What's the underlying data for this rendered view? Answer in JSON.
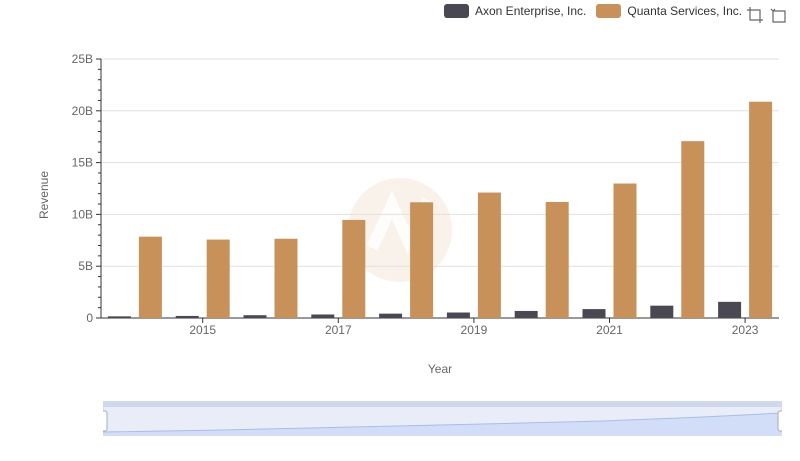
{
  "legend": {
    "items": [
      {
        "label": "Axon Enterprise, Inc.",
        "color": "#4a4953"
      },
      {
        "label": "Quanta Services, Inc.",
        "color": "#c8915a"
      }
    ]
  },
  "toolbox": {
    "icons": [
      "zoom-icon",
      "restore-icon"
    ]
  },
  "chart_data": {
    "type": "bar",
    "categories": [
      "2014",
      "2015",
      "2016",
      "2017",
      "2018",
      "2019",
      "2020",
      "2021",
      "2022",
      "2023"
    ],
    "x_tick_labels": [
      "2015",
      "2017",
      "2019",
      "2021",
      "2023"
    ],
    "series": [
      {
        "name": "Axon Enterprise, Inc.",
        "color": "#4a4953",
        "values": [
          0.16,
          0.2,
          0.27,
          0.34,
          0.42,
          0.53,
          0.68,
          0.86,
          1.19,
          1.56
        ]
      },
      {
        "name": "Quanta Services, Inc.",
        "color": "#c8915a",
        "values": [
          7.85,
          7.57,
          7.65,
          9.47,
          11.17,
          12.11,
          11.2,
          12.98,
          17.07,
          20.88
        ]
      }
    ],
    "y_ticks": [
      "0",
      "5B",
      "10B",
      "15B",
      "20B",
      "25B"
    ],
    "ylim": [
      0,
      25
    ],
    "ylabel": "Revenue",
    "xlabel": "Year",
    "grid": true,
    "legend_position": "top-right"
  }
}
